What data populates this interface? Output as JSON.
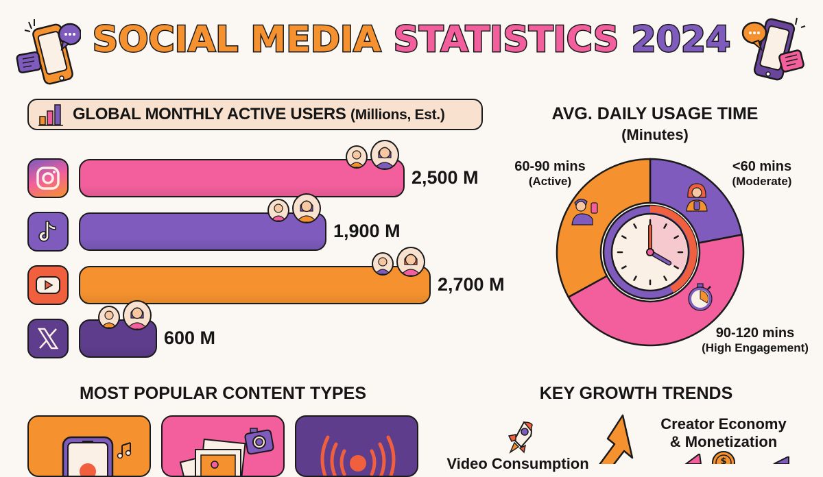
{
  "title": {
    "part1": "SOCIAL MEDIA",
    "part2": "STATISTICS",
    "part3": "2024"
  },
  "colors": {
    "orange": "#f5922f",
    "pink": "#f25f9c",
    "purple": "#7e5bbd",
    "dark_purple": "#5e3d8c",
    "red": "#f0603f",
    "cream": "#f8e2cf",
    "background": "#fbf7f2"
  },
  "chart_data": [
    {
      "type": "bar",
      "orientation": "horizontal",
      "title": "GLOBAL MONTHLY ACTIVE USERS",
      "subtitle": "(Millions, Est.)",
      "categories": [
        "Instagram",
        "TikTok",
        "YouTube",
        "X"
      ],
      "icons": [
        "instagram-icon",
        "tiktok-icon",
        "youtube-icon",
        "x-icon"
      ],
      "values": [
        2500,
        1900,
        2700,
        600
      ],
      "data_labels": [
        "2,500 M",
        "1,900 M",
        "2,700 M",
        "600 M"
      ],
      "bar_colors": [
        "#f25f9c",
        "#7e5bbd",
        "#f5922f",
        "#5e3d8c"
      ],
      "xlim": [
        0,
        2700
      ],
      "unit": "Millions"
    },
    {
      "type": "pie",
      "style": "donut",
      "title": "AVG. DAILY USAGE TIME",
      "subtitle": "(Minutes)",
      "slices": [
        {
          "label": "<60 mins",
          "sublabel": "(Moderate)",
          "value": 22,
          "color": "#7e5bbd"
        },
        {
          "label": "90-120 mins",
          "sublabel": "(High Engagement)",
          "value": 45,
          "color": "#f25f9c"
        },
        {
          "label": "60-90 mins",
          "sublabel": "(Active)",
          "value": 33,
          "color": "#f5922f"
        }
      ]
    }
  ],
  "content_types": {
    "title": "MOST POPULAR CONTENT TYPES",
    "cards": [
      {
        "icon": "short-video-icon",
        "color": "#f5922f"
      },
      {
        "icon": "photos-icon",
        "color": "#f25f9c"
      },
      {
        "icon": "live-stream-icon",
        "color": "#5e3d8c"
      }
    ]
  },
  "growth_trends": {
    "title": "KEY GROWTH TRENDS",
    "items": [
      {
        "label": "Video Consumption"
      },
      {
        "label_line1": "Creator Economy",
        "label_line2": "& Monetization"
      }
    ]
  }
}
